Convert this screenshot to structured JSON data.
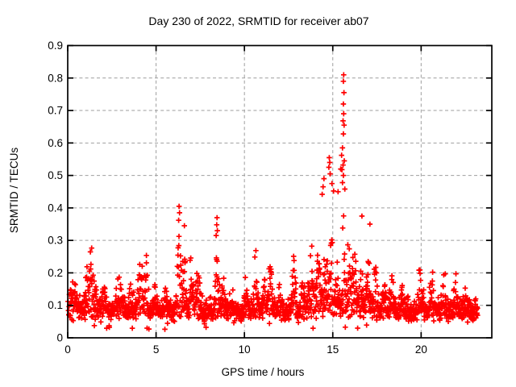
{
  "chart_data": {
    "type": "scatter",
    "title": "Day 230 of 2022, SRMTID for receiver ab07",
    "xlabel": "GPS time / hours",
    "ylabel": "SRMTID / TECUs",
    "xlim": [
      0,
      24
    ],
    "ylim": [
      0,
      0.9
    ],
    "x_ticks": [
      {
        "v": 0,
        "label": "0"
      },
      {
        "v": 5,
        "label": "5"
      },
      {
        "v": 10,
        "label": "10"
      },
      {
        "v": 15,
        "label": "15"
      },
      {
        "v": 20,
        "label": "20"
      }
    ],
    "y_ticks": [
      {
        "v": 0.0,
        "label": "0"
      },
      {
        "v": 0.1,
        "label": "0.1"
      },
      {
        "v": 0.2,
        "label": "0.2"
      },
      {
        "v": 0.3,
        "label": "0.3"
      },
      {
        "v": 0.4,
        "label": "0.4"
      },
      {
        "v": 0.5,
        "label": "0.5"
      },
      {
        "v": 0.6,
        "label": "0.6"
      },
      {
        "v": 0.7,
        "label": "0.7"
      },
      {
        "v": 0.8,
        "label": "0.8"
      },
      {
        "v": 0.9,
        "label": "0.9"
      }
    ],
    "grid": true,
    "grid_color": "#9e9e9e",
    "border_color": "#000000",
    "legend": "none",
    "marker": "plus",
    "marker_color": "#ff0000",
    "marker_size": 6.6,
    "series_name": "SRMTID",
    "time_range_hours": [
      0.03,
      23.2
    ],
    "n_points": 1900,
    "seed": 7,
    "baseline_tecu": {
      "min": 0.05,
      "typical": 0.09,
      "max": 0.15
    },
    "envelope_bumps_hour_amp_sigma": [
      [
        0.35,
        0.07,
        0.18
      ],
      [
        1.3,
        0.19,
        0.22
      ],
      [
        2.05,
        0.09,
        0.12
      ],
      [
        2.9,
        0.13,
        0.15
      ],
      [
        3.6,
        0.08,
        0.12
      ],
      [
        4.1,
        0.17,
        0.14
      ],
      [
        4.45,
        0.13,
        0.08
      ],
      [
        4.9,
        0.1,
        0.1
      ],
      [
        5.55,
        0.07,
        0.1
      ],
      [
        6.3,
        0.27,
        0.1
      ],
      [
        6.6,
        0.2,
        0.08
      ],
      [
        7.0,
        0.15,
        0.1
      ],
      [
        7.35,
        0.19,
        0.1
      ],
      [
        8.45,
        0.24,
        0.09
      ],
      [
        8.8,
        0.12,
        0.08
      ],
      [
        9.3,
        0.06,
        0.1
      ],
      [
        10.1,
        0.1,
        0.1
      ],
      [
        10.65,
        0.19,
        0.1
      ],
      [
        11.1,
        0.1,
        0.08
      ],
      [
        11.45,
        0.15,
        0.1
      ],
      [
        12.0,
        0.08,
        0.1
      ],
      [
        12.8,
        0.17,
        0.1
      ],
      [
        13.3,
        0.1,
        0.1
      ],
      [
        13.75,
        0.21,
        0.1
      ],
      [
        14.2,
        0.22,
        0.12
      ],
      [
        14.6,
        0.28,
        0.1
      ],
      [
        14.9,
        0.3,
        0.09
      ],
      [
        15.25,
        0.28,
        0.08
      ],
      [
        15.6,
        0.38,
        0.06
      ],
      [
        15.9,
        0.28,
        0.08
      ],
      [
        16.2,
        0.25,
        0.1
      ],
      [
        16.6,
        0.2,
        0.08
      ],
      [
        17.0,
        0.2,
        0.1
      ],
      [
        17.4,
        0.14,
        0.1
      ],
      [
        17.9,
        0.1,
        0.1
      ],
      [
        18.35,
        0.11,
        0.08
      ],
      [
        18.9,
        0.08,
        0.08
      ],
      [
        19.95,
        0.15,
        0.09
      ],
      [
        20.6,
        0.13,
        0.09
      ],
      [
        21.3,
        0.14,
        0.09
      ],
      [
        21.95,
        0.12,
        0.09
      ],
      [
        22.5,
        0.07,
        0.1
      ]
    ],
    "peak_points_hour_tecu": [
      [
        15.62,
        0.81
      ],
      [
        15.6,
        0.79
      ],
      [
        15.63,
        0.755
      ],
      [
        15.6,
        0.72
      ],
      [
        15.62,
        0.69
      ],
      [
        15.58,
        0.668
      ],
      [
        15.64,
        0.655
      ],
      [
        15.6,
        0.628
      ],
      [
        15.55,
        0.585
      ],
      [
        15.5,
        0.562
      ],
      [
        15.65,
        0.545
      ],
      [
        15.58,
        0.532
      ],
      [
        15.52,
        0.518
      ],
      [
        15.6,
        0.5
      ],
      [
        15.55,
        0.478
      ],
      [
        15.68,
        0.458
      ],
      [
        15.45,
        0.52
      ],
      [
        14.8,
        0.555
      ],
      [
        14.83,
        0.54
      ],
      [
        14.78,
        0.525
      ],
      [
        14.85,
        0.505
      ],
      [
        14.5,
        0.49
      ],
      [
        14.45,
        0.465
      ],
      [
        14.4,
        0.442
      ],
      [
        14.95,
        0.475
      ],
      [
        15.05,
        0.452
      ],
      [
        15.3,
        0.45
      ],
      [
        6.3,
        0.405
      ],
      [
        6.33,
        0.385
      ],
      [
        6.28,
        0.362
      ],
      [
        8.45,
        0.37
      ],
      [
        8.43,
        0.348
      ],
      [
        8.47,
        0.33
      ],
      [
        16.65,
        0.375
      ],
      [
        17.1,
        0.35
      ],
      [
        8.4,
        0.315
      ],
      [
        6.6,
        0.345
      ]
    ]
  }
}
